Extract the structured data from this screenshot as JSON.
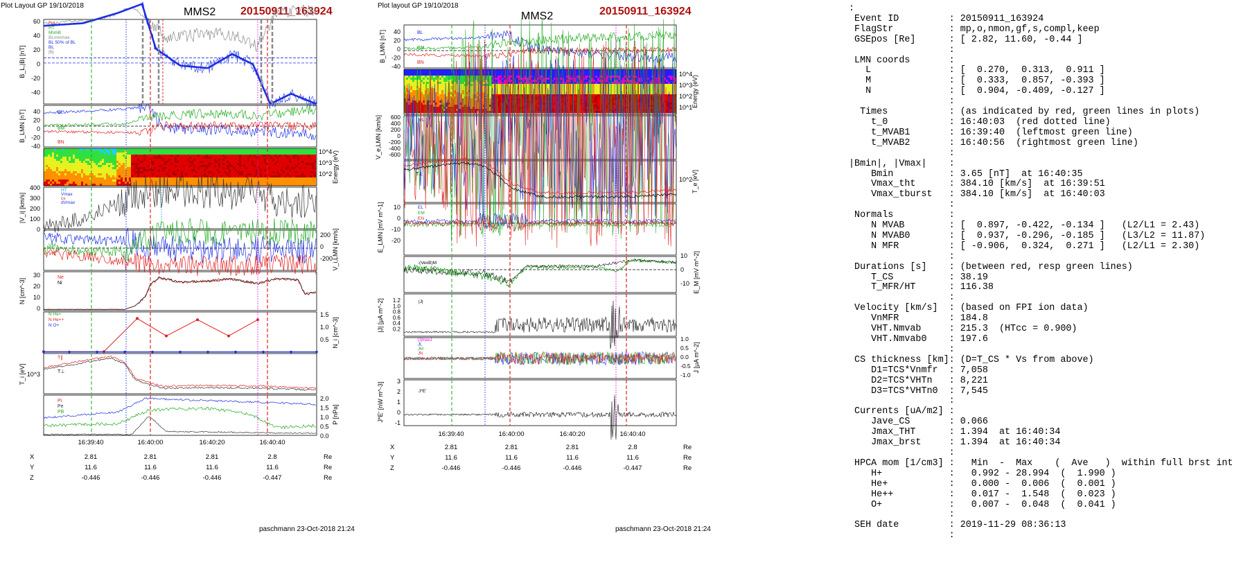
{
  "colors": {
    "red": "#e02020",
    "green": "#1ea81e",
    "blue": "#1c2fe0",
    "magenta": "#e010e0",
    "gray": "#888888",
    "darkred": "#b01010",
    "black": "#000000",
    "cyan": "#20a0d0"
  },
  "left": {
    "top_left": "Plot Layout GP 19/10/2018",
    "sc": "MMS2",
    "event": "20150911_163924",
    "panels": [
      {
        "ylabel": "B_L,|B| [nT]",
        "side": "left",
        "ticks": [
          "60",
          "40",
          "20",
          "0",
          "-20",
          "-40"
        ],
        "legend": [
          "t'cs",
          "HT",
          "MVAB",
          "BLminmax",
          "BL 50% of BL",
          "BL",
          "|B|"
        ]
      },
      {
        "ylabel": "B_LMN [nT]",
        "side": "left",
        "ticks": [
          "40",
          "20",
          "0",
          "-20",
          "-40"
        ],
        "legend": [
          "BL",
          "BM",
          "BN"
        ]
      },
      {
        "ylabel": "Energy (eV)",
        "side": "right",
        "ticks": [
          "10^4",
          "10^3",
          "10^2"
        ],
        "legend": []
      },
      {
        "ylabel": "|V_i| [km/s]",
        "side": "left",
        "ticks": [
          "400",
          "300",
          "200",
          "100",
          "0"
        ],
        "legend": [
          "HT",
          "Vmax",
          "cs",
          "dVmax"
        ]
      },
      {
        "ylabel": "V_i,LMN [km/s]",
        "side": "right",
        "ticks": [
          "200",
          "0",
          "-200"
        ],
        "legend": [
          "VL",
          "VM",
          "VN"
        ]
      },
      {
        "ylabel": "N [cm^-3]",
        "side": "left",
        "ticks": [
          "30",
          "20",
          "10",
          "0"
        ],
        "legend": [
          "Ne",
          "Ni"
        ]
      },
      {
        "ylabel": "N_i [cm^-3]",
        "side": "right",
        "ticks": [
          "1.5",
          "1.0",
          "0.5"
        ],
        "legend": [
          "N  He+",
          "N  He++",
          "N  O+"
        ]
      },
      {
        "ylabel": "T_i [eV]",
        "side": "left",
        "ticks": [
          "10^3"
        ],
        "legend": [
          "T∥",
          "T⊥"
        ]
      },
      {
        "ylabel": "P [nPa]",
        "side": "right",
        "ticks": [
          "2.0",
          "1.5",
          "1.0",
          "0.5",
          "0.0"
        ],
        "legend": [
          "Pi",
          "Pe",
          "PB"
        ]
      }
    ],
    "time_ticks": [
      "16:39:40",
      "16:40:00",
      "16:40:20",
      "16:40:40"
    ],
    "footer": "paschmann 23-Oct-2018 21:24"
  },
  "middle": {
    "top_left": "Plot layout GP 19/10/2018",
    "sc": "MMS2",
    "event": "20150911_163924",
    "panels": [
      {
        "ylabel": "B_LMN [nT]",
        "side": "left",
        "ticks": [
          "40",
          "20",
          "0",
          "-20",
          "-40"
        ],
        "legend": [
          "BL",
          "BM",
          "BN"
        ]
      },
      {
        "ylabel": "Energy (eV)",
        "side": "right",
        "ticks": [
          "10^4",
          "10^3",
          "10^2",
          "10^1"
        ],
        "legend": []
      },
      {
        "ylabel": "V_e,LMN [km/s]",
        "side": "left",
        "ticks": [
          "600",
          "400",
          "200",
          "0",
          "-200",
          "-400",
          "-600"
        ],
        "legend": [
          "VL",
          "VM",
          "VN"
        ]
      },
      {
        "ylabel": "T_e [eV]",
        "side": "right",
        "ticks": [
          "10^2"
        ],
        "legend": [
          "T∥",
          "T⊥"
        ]
      },
      {
        "ylabel": "E_LMN [mV m^-1]",
        "side": "left",
        "ticks": [
          "10",
          "0",
          "-10",
          "-20"
        ],
        "legend": [
          "EL",
          "EM",
          "EN"
        ]
      },
      {
        "ylabel": "E_M [mV m^-2]",
        "side": "right",
        "ticks": [
          "10",
          "0",
          "-10"
        ],
        "legend": [
          "-(VexB)M",
          "EM"
        ]
      },
      {
        "ylabel": "|J| [μA m^-2]",
        "side": "left",
        "ticks": [
          "1.2",
          "1.0",
          "0.8",
          "0.6",
          "0.4",
          "0.2"
        ],
        "legend": [
          "|J|"
        ]
      },
      {
        "ylabel": "J [μA m^-2]",
        "side": "right",
        "ticks": [
          "1.0",
          "0.5",
          "0.0",
          "-0.5",
          "-1.0"
        ],
        "legend": [
          "|J|maxJ",
          "JL",
          "JM",
          "JN"
        ]
      },
      {
        "ylabel": "J*E' [nW m^-3]",
        "side": "left",
        "ticks": [
          "3",
          "2",
          "1",
          "0",
          "-1"
        ],
        "legend": [
          "J*E'"
        ]
      }
    ],
    "time_ticks": [
      "16:39:40",
      "16:40:00",
      "16:40:20",
      "16:40:40"
    ],
    "footer": "paschmann 23-Oct-2018 21:24"
  },
  "coords": {
    "X": [
      "2.81",
      "2.81",
      "2.81",
      "2.8"
    ],
    "Y": [
      "11.6",
      "11.6",
      "11.6",
      "11.6"
    ],
    "Z": [
      "-0.446",
      "-0.446",
      "-0.446",
      "-0.447"
    ],
    "unit": "Re"
  },
  "summary": ":\n Event ID         : 20150911_163924\n FlagStr          : mp,o,nmon,gf,s,compl,keep\n GSEpos [Re]      : [ 2.82, 11.60, -0.44 ]\n                  :\n LMN coords       :\n   L              : [  0.270,  0.313,  0.911 ]\n   M              : [  0.333,  0.857, -0.393 ]\n   N              : [  0.904, -0.409, -0.127 ]\n                  :\n  Times           : (as indicated by red, green lines in plots)\n    t_0           : 16:40:03  (red dotted line)\n    t_MVAB1       : 16:39:40  (leftmost green line)\n    t_MVAB2       : 16:40:56  (rightmost green line)\n                  :\n|Bmin|, |Vmax|    :\n    Bmin          : 3.65 [nT]  at 16:40:35\n    Vmax_tht      : 384.10 [km/s]  at 16:39:51\n    Vmax_tburst   : 384.10 [km/s]  at 16:40:03\n                  :\n Normals          :\n    N MVAB        : [  0.897, -0.422, -0.134 ]   (L2/L1 = 2.43)\n    N MVAB0       : [  0.937, -0.296, -0.185 ]   (L3/L2 = 11.87)\n    N MFR         : [ -0.906,  0.324,  0.271 ]   (L2/L1 = 2.30)\n                  :\n Durations [s]    : (between red, resp green lines)\n    T_CS          : 38.19\n    T_MFR/HT      : 116.38\n                  :\n Velocity [km/s]  : (based on FPI ion data)\n    VnMFR         : 184.8\n    VHT.Nmvab     : 215.3  (HTcc = 0.900)\n    VHT.Nmvab0    : 197.6\n                  :\n CS thickness [km]: (D=T_CS * Vs from above)\n    D1=TCS*Vnmfr  : 7,058\n    D2=TCS*VHTn   : 8,221\n    D3=TCS*VHTn0  : 7,545\n                  :\n Currents [uA/m2] :\n    Jave_CS       : 0.066\n    Jmax_THT      : 1.394  at 16:40:34\n    Jmax_brst     : 1.394  at 16:40:34\n                  :\n HPCA mom [1/cm3] :   Min  -  Max    (  Ave   )  within full brst int\n    H+            :   0.992 - 28.994  (  1.990 )\n    He+           :   0.000 -  0.006  (  0.001 )\n    He++          :   0.017 -  1.548  (  0.023 )\n    O+            :   0.007 -  0.048  (  0.041 )\n                  :\n SEH date         : 2019-11-29 08:36:13\n                  :",
  "chart_data": [
    {
      "type": "line",
      "title": "MMS2 left panels",
      "x_ticks": [
        "16:39:40",
        "16:40:00",
        "16:40:20",
        "16:40:40"
      ],
      "series": [
        {
          "name": "BL",
          "x": [
            "16:39:26",
            "16:39:35",
            "16:39:45",
            "16:39:52",
            "16:40:00",
            "16:40:10",
            "16:40:20",
            "16:40:28",
            "16:40:35",
            "16:40:45",
            "16:40:56"
          ],
          "values": [
            28,
            30,
            38,
            44,
            8,
            -3,
            -5,
            6,
            -20,
            -36,
            -32
          ]
        },
        {
          "name": "Ni",
          "x": [
            "16:39:26",
            "16:39:50",
            "16:39:58",
            "16:40:02",
            "16:40:10",
            "16:40:20",
            "16:40:30",
            "16:40:40",
            "16:40:50",
            "16:40:56"
          ],
          "values": [
            1,
            1,
            5,
            20,
            25,
            23,
            24,
            25,
            24,
            14
          ]
        },
        {
          "name": "N He++",
          "x": [
            "16:39:26",
            "16:39:40",
            "16:39:50",
            "16:39:58",
            "16:40:09",
            "16:40:23",
            "16:40:34"
          ],
          "values": [
            0.02,
            0.02,
            0.05,
            1.35,
            0.65,
            1.2,
            0.65
          ]
        }
      ]
    },
    {
      "type": "line",
      "title": "MMS2 middle panels",
      "x_ticks": [
        "16:39:40",
        "16:40:00",
        "16:40:20",
        "16:40:40"
      ],
      "series": [
        {
          "name": "|J|",
          "x": [
            "16:39:26",
            "16:39:50",
            "16:40:00",
            "16:40:20",
            "16:40:34",
            "16:40:56"
          ],
          "values": [
            0.05,
            0.05,
            0.3,
            0.3,
            1.394,
            0.2
          ]
        },
        {
          "name": "J*E'",
          "x": [
            "16:39:26",
            "16:40:00",
            "16:40:34",
            "16:40:56"
          ],
          "values": [
            0,
            0.2,
            2.8,
            0
          ]
        }
      ]
    }
  ]
}
